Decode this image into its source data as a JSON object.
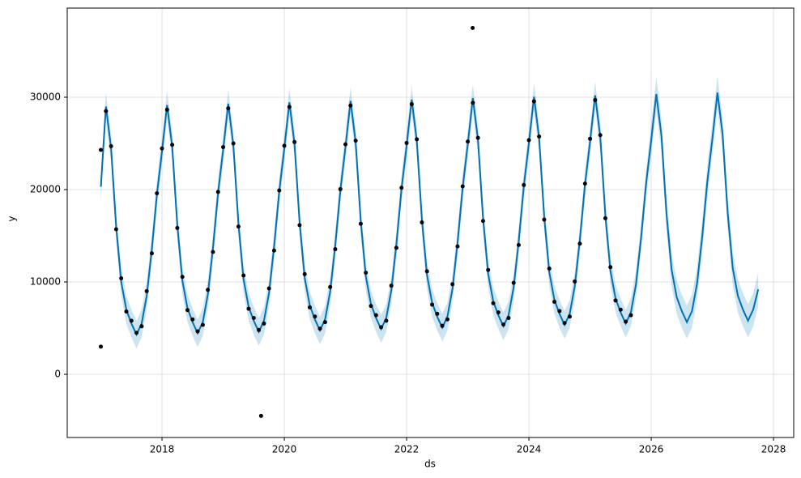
{
  "chart_data": {
    "type": "forecast",
    "xlabel": "ds",
    "ylabel": "y",
    "xlim": [
      2016.45,
      2028.33
    ],
    "ylim": [
      -6840,
      39650
    ],
    "xticks": [
      2018,
      2020,
      2022,
      2024,
      2026,
      2028
    ],
    "yticks": [
      0,
      10000,
      20000,
      30000
    ],
    "grid": true,
    "forecast": {
      "color": "#0072B2",
      "x": [
        2017,
        2017.083,
        2017.167,
        2017.25,
        2017.333,
        2017.417,
        2017.5,
        2017.583,
        2017.667,
        2017.75,
        2017.833,
        2017.917,
        2018,
        2018.083,
        2018.167,
        2018.25,
        2018.333,
        2018.417,
        2018.5,
        2018.583,
        2018.667,
        2018.75,
        2018.833,
        2018.917,
        2019,
        2019.083,
        2019.167,
        2019.25,
        2019.333,
        2019.417,
        2019.5,
        2019.583,
        2019.667,
        2019.75,
        2019.833,
        2019.917,
        2020,
        2020.083,
        2020.167,
        2020.25,
        2020.333,
        2020.417,
        2020.5,
        2020.583,
        2020.667,
        2020.75,
        2020.833,
        2020.917,
        2021,
        2021.083,
        2021.167,
        2021.25,
        2021.333,
        2021.417,
        2021.5,
        2021.583,
        2021.667,
        2021.75,
        2021.833,
        2021.917,
        2022,
        2022.083,
        2022.167,
        2022.25,
        2022.333,
        2022.417,
        2022.5,
        2022.583,
        2022.667,
        2022.75,
        2022.833,
        2022.917,
        2023,
        2023.083,
        2023.167,
        2023.25,
        2023.333,
        2023.417,
        2023.5,
        2023.583,
        2023.667,
        2023.75,
        2023.833,
        2023.917,
        2024,
        2024.083,
        2024.167,
        2024.25,
        2024.333,
        2024.417,
        2024.5,
        2024.583,
        2024.667,
        2024.75,
        2024.833,
        2024.917,
        2025,
        2025.083,
        2025.167,
        2025.25,
        2025.333,
        2025.417,
        2025.5,
        2025.583,
        2025.667,
        2025.75,
        2025.833,
        2025.917,
        2026,
        2026.083,
        2026.167,
        2026.25,
        2026.333,
        2026.417,
        2026.5,
        2026.583,
        2026.667,
        2026.75,
        2026.833,
        2026.917,
        2027,
        2027.083,
        2027.167,
        2027.25,
        2027.333,
        2027.417,
        2027.5,
        2027.583,
        2027.667,
        2027.75
      ],
      "values": [
        20300,
        29000,
        24500,
        16000,
        10000,
        7000,
        5500,
        4300,
        5500,
        8500,
        13500,
        19500,
        24150,
        29150,
        24650,
        16150,
        10150,
        7150,
        5650,
        4450,
        5650,
        8650,
        13650,
        19650,
        24300,
        29300,
        24800,
        16300,
        10300,
        7300,
        5800,
        4600,
        5800,
        8800,
        13800,
        19800,
        24450,
        29450,
        24950,
        16450,
        10450,
        7450,
        5950,
        4750,
        5950,
        8950,
        13950,
        19950,
        24600,
        29600,
        25100,
        16600,
        10600,
        7600,
        6100,
        4900,
        6100,
        9100,
        14100,
        20100,
        24750,
        29750,
        25250,
        16750,
        10750,
        7750,
        6250,
        5050,
        6250,
        9250,
        14250,
        20250,
        24900,
        29900,
        25400,
        16900,
        10900,
        7900,
        6400,
        5200,
        6400,
        9400,
        14400,
        20400,
        25050,
        30050,
        25550,
        17050,
        11050,
        8050,
        6550,
        5350,
        6550,
        9550,
        14550,
        20550,
        25200,
        30200,
        25700,
        17200,
        11200,
        8200,
        6700,
        5500,
        6700,
        9700,
        14700,
        20700,
        25350,
        30350,
        25850,
        17350,
        11350,
        8350,
        6850,
        5650,
        6850,
        9850,
        14850,
        20850,
        25500,
        30500,
        26000,
        17500,
        11500,
        8500,
        7000,
        5800,
        7000,
        9200
      ],
      "lower": [
        18800,
        27500,
        23000,
        14500,
        8500,
        5500,
        4000,
        2800,
        4000,
        7000,
        12000,
        18000,
        22650,
        27650,
        23150,
        14650,
        8650,
        5650,
        4150,
        2950,
        4150,
        7150,
        12150,
        18150,
        22800,
        27800,
        23300,
        14800,
        8800,
        5800,
        4300,
        3100,
        4300,
        7300,
        12300,
        18300,
        22950,
        27950,
        23450,
        14950,
        8950,
        5950,
        4450,
        3250,
        4450,
        7450,
        12450,
        18450,
        23100,
        28100,
        23600,
        15100,
        9100,
        6100,
        4600,
        3400,
        4600,
        7600,
        12600,
        18600,
        23250,
        28250,
        23750,
        15250,
        9250,
        6250,
        4750,
        3550,
        4750,
        7750,
        12750,
        18750,
        23400,
        28400,
        23900,
        15400,
        9400,
        6400,
        4900,
        3700,
        4900,
        7900,
        12900,
        18900,
        23550,
        28550,
        24050,
        15550,
        9550,
        6550,
        5050,
        3850,
        5050,
        8050,
        13050,
        19050,
        23700,
        28700,
        24200,
        15700,
        9700,
        6700,
        5200,
        4000,
        5200,
        8200,
        13200,
        19200,
        23550,
        28550,
        24050,
        15550,
        9550,
        6550,
        5050,
        3850,
        5050,
        8050,
        13050,
        19050,
        23700,
        28700,
        24200,
        15700,
        9700,
        6700,
        5200,
        4000,
        5200,
        7400
      ],
      "upper": [
        21800,
        30500,
        26000,
        17500,
        11500,
        8500,
        7000,
        5800,
        7000,
        10000,
        15000,
        21000,
        25650,
        30650,
        26150,
        17650,
        11650,
        8650,
        7150,
        5950,
        7150,
        10150,
        15150,
        21150,
        25800,
        30800,
        26300,
        17800,
        11800,
        8800,
        7300,
        6100,
        7300,
        10300,
        15300,
        21300,
        25950,
        30950,
        26450,
        17950,
        11950,
        8950,
        7450,
        6250,
        7450,
        10450,
        15450,
        21450,
        26100,
        31100,
        26600,
        18100,
        12100,
        9100,
        7600,
        6400,
        7600,
        10600,
        15600,
        21600,
        26250,
        31250,
        26750,
        18250,
        12250,
        9250,
        7750,
        6550,
        7750,
        10750,
        15750,
        21750,
        26400,
        31400,
        26900,
        18400,
        12400,
        9400,
        7900,
        6700,
        7900,
        10900,
        15900,
        21900,
        26550,
        31550,
        27050,
        18550,
        12550,
        9550,
        8050,
        6850,
        8050,
        11050,
        16050,
        22050,
        26700,
        31700,
        27200,
        18700,
        12700,
        9700,
        8200,
        7000,
        8200,
        11200,
        16200,
        22200,
        27150,
        32150,
        27650,
        19150,
        13150,
        10150,
        8650,
        7450,
        8650,
        11650,
        16650,
        22650,
        27300,
        32300,
        27800,
        19300,
        13300,
        10300,
        8800,
        7600,
        8800,
        11000
      ]
    },
    "observed": {
      "color": "#000000",
      "x": [
        2017,
        2017.083,
        2017.167,
        2017.25,
        2017.333,
        2017.417,
        2017.5,
        2017.583,
        2017.667,
        2017.75,
        2017.833,
        2017.917,
        2018,
        2018.083,
        2018.167,
        2018.25,
        2018.333,
        2018.417,
        2018.5,
        2018.583,
        2018.667,
        2018.75,
        2018.833,
        2018.917,
        2019,
        2019.083,
        2019.167,
        2019.25,
        2019.333,
        2019.417,
        2019.5,
        2019.583,
        2019.667,
        2019.75,
        2019.833,
        2019.917,
        2020,
        2020.083,
        2020.167,
        2020.25,
        2020.333,
        2020.417,
        2020.5,
        2020.583,
        2020.667,
        2020.75,
        2020.833,
        2020.917,
        2021,
        2021.083,
        2021.167,
        2021.25,
        2021.333,
        2021.417,
        2021.5,
        2021.583,
        2021.667,
        2021.75,
        2021.833,
        2021.917,
        2022,
        2022.083,
        2022.167,
        2022.25,
        2022.333,
        2022.417,
        2022.5,
        2022.583,
        2022.667,
        2022.75,
        2022.833,
        2022.917,
        2023,
        2023.083,
        2023.167,
        2023.25,
        2023.333,
        2023.417,
        2023.5,
        2023.583,
        2023.667,
        2023.75,
        2023.833,
        2023.917,
        2024,
        2024.083,
        2024.167,
        2024.25,
        2024.333,
        2024.417,
        2024.5,
        2024.583,
        2024.667,
        2024.75,
        2024.833,
        2024.917,
        2025,
        2025.083,
        2025.167,
        2025.25,
        2025.333,
        2025.417,
        2025.5,
        2025.583,
        2025.667,
        2017,
        2019.62,
        2023.08
      ],
      "values": [
        24300,
        28500,
        24700,
        15700,
        10400,
        6800,
        5800,
        4500,
        5200,
        9000,
        13100,
        19600,
        24450,
        28650,
        24850,
        15850,
        10550,
        6950,
        5950,
        4650,
        5350,
        9150,
        13250,
        19750,
        24600,
        28800,
        25000,
        16000,
        10700,
        7100,
        6100,
        4800,
        5500,
        9300,
        13400,
        19900,
        24750,
        28950,
        25150,
        16150,
        10850,
        7250,
        6250,
        4950,
        5650,
        9450,
        13550,
        20050,
        24900,
        29100,
        25300,
        16300,
        11000,
        7400,
        6400,
        5100,
        5800,
        9600,
        13700,
        20200,
        25050,
        29250,
        25450,
        16450,
        11150,
        7550,
        6550,
        5250,
        5950,
        9750,
        13850,
        20350,
        25200,
        29400,
        25600,
        16600,
        11300,
        7700,
        6700,
        5400,
        6100,
        9900,
        14000,
        20500,
        25350,
        29550,
        25750,
        16750,
        11450,
        7850,
        6850,
        5550,
        6250,
        10050,
        14150,
        20650,
        25500,
        29700,
        25900,
        16900,
        11600,
        8000,
        7000,
        5700,
        6400,
        3000,
        -4500,
        37500
      ]
    }
  }
}
